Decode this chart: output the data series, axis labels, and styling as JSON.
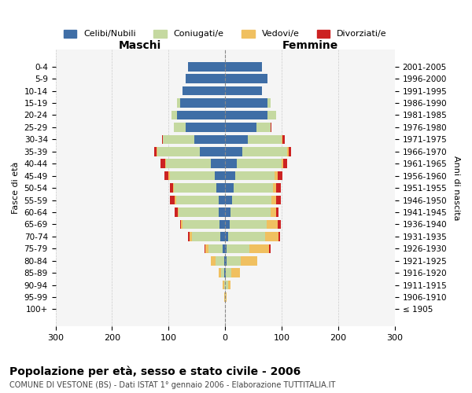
{
  "age_groups": [
    "100+",
    "95-99",
    "90-94",
    "85-89",
    "80-84",
    "75-79",
    "70-74",
    "65-69",
    "60-64",
    "55-59",
    "50-54",
    "45-49",
    "40-44",
    "35-39",
    "30-34",
    "25-29",
    "20-24",
    "15-19",
    "10-14",
    "5-9",
    "0-4"
  ],
  "birth_years": [
    "≤ 1905",
    "1906-1910",
    "1911-1915",
    "1916-1920",
    "1921-1925",
    "1926-1930",
    "1931-1935",
    "1936-1940",
    "1941-1945",
    "1946-1950",
    "1951-1955",
    "1956-1960",
    "1961-1965",
    "1966-1970",
    "1971-1975",
    "1976-1980",
    "1981-1985",
    "1986-1990",
    "1991-1995",
    "1996-2000",
    "2001-2005"
  ],
  "males": {
    "celibi": [
      0,
      0,
      0,
      2,
      2,
      5,
      8,
      10,
      12,
      12,
      15,
      18,
      25,
      45,
      55,
      70,
      85,
      80,
      75,
      70,
      65
    ],
    "coniugati": [
      0,
      0,
      2,
      5,
      15,
      25,
      50,
      65,
      70,
      75,
      75,
      80,
      80,
      75,
      55,
      20,
      10,
      5,
      0,
      0,
      0
    ],
    "vedovi": [
      0,
      1,
      2,
      5,
      8,
      5,
      5,
      3,
      2,
      2,
      2,
      2,
      1,
      1,
      0,
      0,
      0,
      0,
      0,
      0,
      0
    ],
    "divorziati": [
      0,
      0,
      0,
      0,
      0,
      2,
      2,
      2,
      5,
      8,
      5,
      8,
      8,
      5,
      2,
      1,
      0,
      0,
      0,
      0,
      0
    ]
  },
  "females": {
    "nubili": [
      0,
      0,
      0,
      1,
      2,
      3,
      5,
      8,
      10,
      12,
      15,
      18,
      20,
      30,
      40,
      55,
      75,
      75,
      65,
      75,
      65
    ],
    "coniugate": [
      0,
      1,
      5,
      10,
      25,
      40,
      65,
      65,
      70,
      70,
      70,
      70,
      80,
      80,
      60,
      25,
      15,
      5,
      0,
      0,
      0
    ],
    "vedove": [
      0,
      2,
      5,
      15,
      30,
      35,
      25,
      20,
      10,
      8,
      5,
      5,
      2,
      2,
      1,
      0,
      0,
      0,
      0,
      0,
      0
    ],
    "divorziate": [
      0,
      0,
      0,
      0,
      0,
      2,
      2,
      5,
      5,
      8,
      8,
      8,
      8,
      5,
      5,
      2,
      0,
      0,
      0,
      0,
      0
    ]
  },
  "color_celibi": "#3f6ea6",
  "color_coniugati": "#c5d9a0",
  "color_vedovi": "#f0c060",
  "color_divorziati": "#cc2222",
  "title": "Popolazione per età, sesso e stato civile - 2006",
  "subtitle": "COMUNE DI VESTONE (BS) - Dati ISTAT 1° gennaio 2006 - Elaborazione TUTTITALIA.IT",
  "ylabel_left": "Fasce di età",
  "ylabel_right": "Anni di nascita",
  "xlabel_maschi": "Maschi",
  "xlabel_femmine": "Femmine",
  "xlim": 300,
  "bg_color": "#ffffff",
  "grid_color": "#cccccc"
}
